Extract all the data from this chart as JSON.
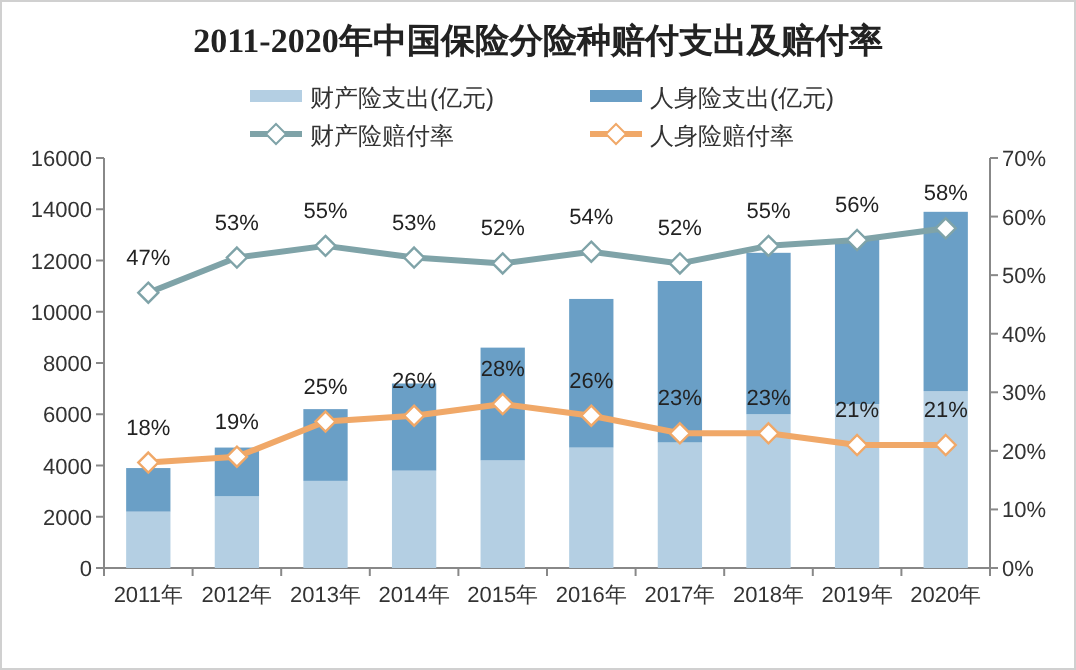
{
  "chart_data": {
    "type": "bar",
    "stacked": true,
    "title": "2011-2020年中国保险分险种赔付支出及赔付率",
    "legend": "top",
    "grid": false,
    "categories": [
      "2011年",
      "2012年",
      "2013年",
      "2014年",
      "2015年",
      "2016年",
      "2017年",
      "2018年",
      "2019年",
      "2020年"
    ],
    "ylim": [
      0,
      16000
    ],
    "yticks": [
      0,
      2000,
      4000,
      6000,
      8000,
      10000,
      12000,
      14000,
      16000
    ],
    "y2lim": [
      0,
      70
    ],
    "y2ticks": [
      {
        "value": 0,
        "label": "0%"
      },
      {
        "value": 10,
        "label": "10%"
      },
      {
        "value": 20,
        "label": "20%"
      },
      {
        "value": 30,
        "label": "30%"
      },
      {
        "value": 40,
        "label": "40%"
      },
      {
        "value": 50,
        "label": "50%"
      },
      {
        "value": 60,
        "label": "60%"
      },
      {
        "value": 70,
        "label": "70%"
      }
    ],
    "series": [
      {
        "name": "财产险支出(亿元)",
        "color": "#b4cfe3",
        "values": [
          2200,
          2800,
          3400,
          3800,
          4200,
          4700,
          4900,
          6000,
          6400,
          6900
        ]
      },
      {
        "name": "人身险支出(亿元)",
        "color": "#6a9fc6",
        "values": [
          1700,
          1900,
          2800,
          3400,
          4400,
          5800,
          6300,
          6300,
          6400,
          7000
        ]
      },
      {
        "name": "财产险赔付率",
        "type": "line",
        "axis": "y2",
        "marker": "diamond",
        "color": "#7fa3a8",
        "values": [
          47,
          53,
          55,
          53,
          52,
          54,
          52,
          55,
          56,
          58
        ],
        "value_labels": [
          "47%",
          "53%",
          "55%",
          "53%",
          "52%",
          "54%",
          "52%",
          "55%",
          "56%",
          "58%"
        ]
      },
      {
        "name": "人身险赔付率",
        "type": "line",
        "axis": "y2",
        "marker": "diamond",
        "color": "#f0a868",
        "values": [
          18,
          19,
          25,
          26,
          28,
          26,
          23,
          23,
          21,
          21
        ],
        "value_labels": [
          "18%",
          "19%",
          "25%",
          "26%",
          "28%",
          "26%",
          "23%",
          "23%",
          "21%",
          "21%"
        ]
      }
    ]
  }
}
